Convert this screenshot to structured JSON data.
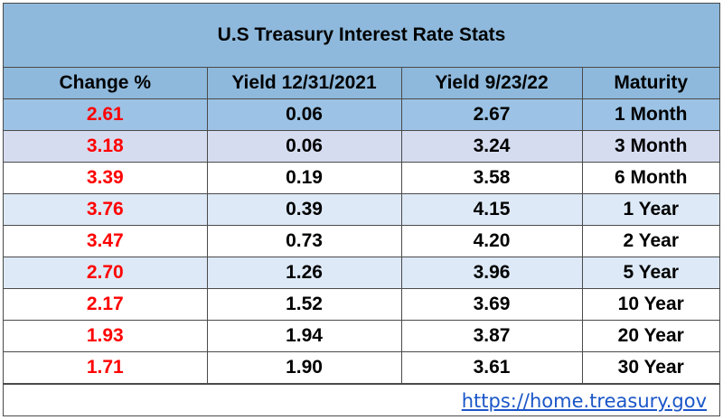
{
  "title": "U.S Treasury Interest Rate Stats",
  "columns": [
    "Change %",
    "Yield 12/31/2021",
    "Yield 9/23/22",
    "Maturity"
  ],
  "rows": [
    {
      "change": "2.61",
      "yield_2021": "0.06",
      "yield_2022": "2.67",
      "maturity": "1 Month"
    },
    {
      "change": "3.18",
      "yield_2021": "0.06",
      "yield_2022": "3.24",
      "maturity": "3 Month"
    },
    {
      "change": "3.39",
      "yield_2021": "0.19",
      "yield_2022": "3.58",
      "maturity": "6 Month"
    },
    {
      "change": "3.76",
      "yield_2021": "0.39",
      "yield_2022": "4.15",
      "maturity": "1 Year"
    },
    {
      "change": "3.47",
      "yield_2021": "0.73",
      "yield_2022": "4.20",
      "maturity": "2 Year"
    },
    {
      "change": "2.70",
      "yield_2021": "1.26",
      "yield_2022": "3.96",
      "maturity": "5 Year"
    },
    {
      "change": "2.17",
      "yield_2021": "1.52",
      "yield_2022": "3.69",
      "maturity": "10 Year"
    },
    {
      "change": "1.93",
      "yield_2021": "1.94",
      "yield_2022": "3.87",
      "maturity": "20 Year"
    },
    {
      "change": "1.71",
      "yield_2021": "1.90",
      "yield_2022": "3.61",
      "maturity": "30 Year"
    }
  ],
  "footer": {
    "link_text": "https://home.treasury.gov"
  },
  "colors": {
    "header_blue": "#8eb9dc",
    "change_red": "#ff0000",
    "link_blue": "#1a56c8"
  }
}
